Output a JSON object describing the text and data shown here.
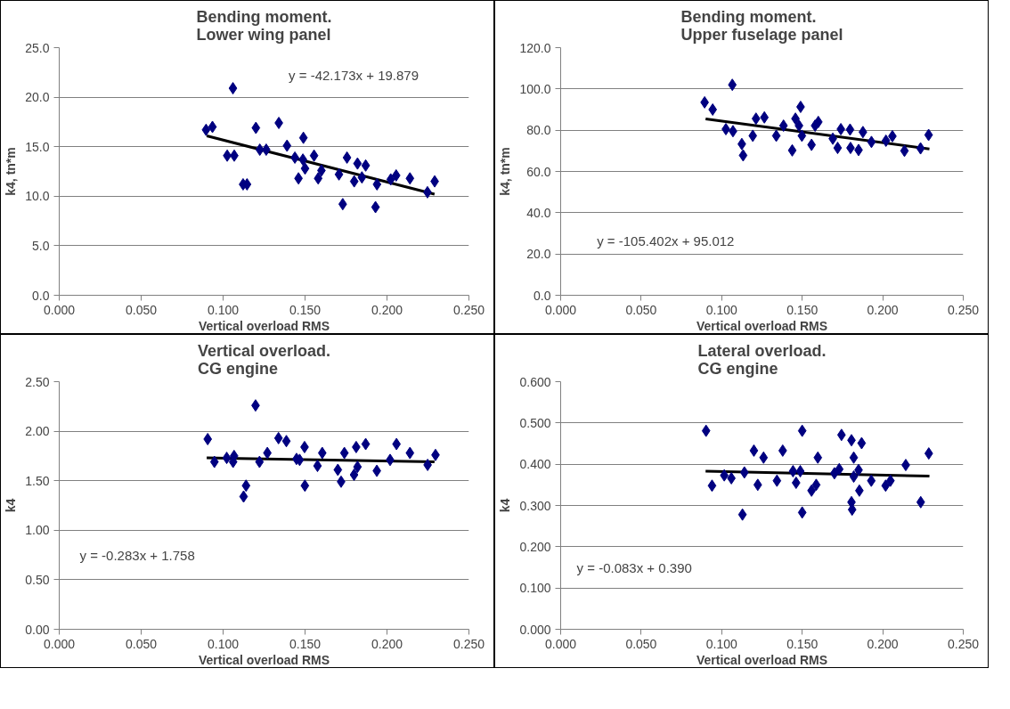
{
  "chart_data": [
    {
      "type": "scatter",
      "title": "Bending moment.\nLower wing panel",
      "xlabel": "Vertical overload RMS",
      "ylabel": "k4, tn*m",
      "xlim": [
        0,
        0.25
      ],
      "ylim": [
        0,
        25
      ],
      "xticks": [
        {
          "value": 0,
          "label": "0.000"
        },
        {
          "value": 0.05,
          "label": "0.050"
        },
        {
          "value": 0.1,
          "label": "0.100"
        },
        {
          "value": 0.15,
          "label": "0.150"
        },
        {
          "value": 0.2,
          "label": "0.200"
        },
        {
          "value": 0.25,
          "label": "0.250"
        }
      ],
      "yticks": [
        {
          "value": 0,
          "label": "0.0"
        },
        {
          "value": 5,
          "label": "5.0"
        },
        {
          "value": 10,
          "label": "10.0"
        },
        {
          "value": 15,
          "label": "15.0"
        },
        {
          "value": 20,
          "label": "20.0"
        },
        {
          "value": 25,
          "label": "25.0"
        }
      ],
      "grid": "y",
      "annotations": [
        "y = -42.173x + 19.879"
      ],
      "series": [
        {
          "type": "scatter",
          "marker": "diamond",
          "color": "#000080",
          "x": [
            0.0896,
            0.0935,
            0.106,
            0.1025,
            0.1068,
            0.1122,
            0.1146,
            0.12,
            0.1224,
            0.1263,
            0.134,
            0.139,
            0.1438,
            0.146,
            0.1487,
            0.149,
            0.15,
            0.1555,
            0.158,
            0.16,
            0.1707,
            0.173,
            0.1756,
            0.18,
            0.182,
            0.1847,
            0.187,
            0.193,
            0.1939,
            0.2023,
            0.2056,
            0.214,
            0.2247,
            0.2291
          ],
          "values": [
            16.7,
            17.0,
            20.9,
            14.1,
            14.1,
            11.2,
            11.2,
            16.9,
            14.7,
            14.7,
            17.4,
            15.1,
            13.9,
            11.8,
            13.7,
            15.9,
            12.8,
            14.1,
            11.8,
            12.6,
            12.2,
            9.2,
            13.9,
            11.5,
            13.3,
            11.9,
            13.1,
            8.9,
            11.2,
            11.7,
            12.1,
            11.8,
            10.4,
            11.5
          ]
        },
        {
          "type": "line",
          "color": "#000000",
          "x": [
            0.09,
            0.229
          ],
          "values": [
            16.1,
            10.2
          ]
        }
      ]
    },
    {
      "type": "scatter",
      "title": "Bending moment.\nUpper fuselage panel",
      "xlabel": "Vertical overload RMS",
      "ylabel": "k4, tn*m",
      "xlim": [
        0,
        0.25
      ],
      "ylim": [
        0,
        120
      ],
      "xticks": [
        {
          "value": 0,
          "label": "0.000"
        },
        {
          "value": 0.05,
          "label": "0.050"
        },
        {
          "value": 0.1,
          "label": "0.100"
        },
        {
          "value": 0.15,
          "label": "0.150"
        },
        {
          "value": 0.2,
          "label": "0.200"
        },
        {
          "value": 0.25,
          "label": "0.250"
        }
      ],
      "yticks": [
        {
          "value": 0,
          "label": "0.0"
        },
        {
          "value": 20,
          "label": "20.0"
        },
        {
          "value": 40,
          "label": "40.0"
        },
        {
          "value": 60,
          "label": "60.0"
        },
        {
          "value": 80,
          "label": "80.0"
        },
        {
          "value": 100,
          "label": "100.0"
        },
        {
          "value": 120,
          "label": "120.0"
        }
      ],
      "grid": "y",
      "annotations": [
        "y = -105.402x + 95.012"
      ],
      "series": [
        {
          "type": "scatter",
          "marker": "diamond",
          "color": "#000080",
          "x": [
            0.0894,
            0.0944,
            0.1026,
            0.107,
            0.1066,
            0.1125,
            0.1133,
            0.1193,
            0.1213,
            0.1265,
            0.1339,
            0.1384,
            0.1438,
            0.1458,
            0.148,
            0.149,
            0.1498,
            0.1558,
            0.158,
            0.16,
            0.169,
            0.172,
            0.174,
            0.1797,
            0.18,
            0.185,
            0.1877,
            0.193,
            0.202,
            0.206,
            0.2135,
            0.2235,
            0.2285
          ],
          "values": [
            93.5,
            90,
            80.5,
            79.5,
            102,
            73.3,
            67.8,
            77.3,
            85.6,
            86.2,
            77.3,
            82.2,
            70.2,
            85.6,
            82.2,
            91.3,
            77.3,
            72.9,
            82.2,
            84,
            75.9,
            71.4,
            80.5,
            80.3,
            71.4,
            70.4,
            79.1,
            74.3,
            74.9,
            77.1,
            70,
            71.2,
            77.7
          ]
        },
        {
          "type": "line",
          "color": "#000000",
          "x": [
            0.09,
            0.229
          ],
          "values": [
            85.5,
            70.9
          ]
        }
      ]
    },
    {
      "type": "scatter",
      "title": "Vertical overload.\nCG engine",
      "xlabel": "Vertical overload RMS",
      "ylabel": "k4",
      "xlim": [
        0,
        0.25
      ],
      "ylim": [
        0,
        2.5
      ],
      "xticks": [
        {
          "value": 0,
          "label": "0.000"
        },
        {
          "value": 0.05,
          "label": "0.050"
        },
        {
          "value": 0.1,
          "label": "0.100"
        },
        {
          "value": 0.15,
          "label": "0.150"
        },
        {
          "value": 0.2,
          "label": "0.200"
        },
        {
          "value": 0.25,
          "label": "0.250"
        }
      ],
      "yticks": [
        {
          "value": 0,
          "label": "0.00"
        },
        {
          "value": 0.5,
          "label": "0.50"
        },
        {
          "value": 1,
          "label": "1.00"
        },
        {
          "value": 1.5,
          "label": "1.50"
        },
        {
          "value": 2,
          "label": "2.00"
        },
        {
          "value": 2.5,
          "label": "2.50"
        }
      ],
      "grid": "y",
      "annotations": [
        "y = -0.283x + 1.758"
      ],
      "series": [
        {
          "type": "scatter",
          "marker": "diamond",
          "color": "#000080",
          "x": [
            0.0906,
            0.0947,
            0.1022,
            0.1067,
            0.1061,
            0.1198,
            0.114,
            0.1125,
            0.1222,
            0.127,
            0.1338,
            0.1386,
            0.1448,
            0.1497,
            0.1499,
            0.1467,
            0.1576,
            0.1605,
            0.17,
            0.172,
            0.174,
            0.1799,
            0.1812,
            0.182,
            0.187,
            0.1938,
            0.2019,
            0.2058,
            0.214,
            0.2248,
            0.2296
          ],
          "values": [
            1.92,
            1.69,
            1.73,
            1.75,
            1.69,
            2.26,
            1.45,
            1.34,
            1.69,
            1.78,
            1.93,
            1.9,
            1.72,
            1.84,
            1.45,
            1.71,
            1.65,
            1.78,
            1.61,
            1.49,
            1.78,
            1.56,
            1.84,
            1.64,
            1.87,
            1.6,
            1.71,
            1.87,
            1.78,
            1.66,
            1.76
          ]
        },
        {
          "type": "line",
          "color": "#000000",
          "x": [
            0.09,
            0.229
          ],
          "values": [
            1.73,
            1.69
          ]
        }
      ]
    },
    {
      "type": "scatter",
      "title": "Lateral overload.\nCG engine",
      "xlabel": "Vertical overload RMS",
      "ylabel": "k4",
      "xlim": [
        0,
        0.25
      ],
      "ylim": [
        0,
        0.6
      ],
      "xticks": [
        {
          "value": 0,
          "label": "0.000"
        },
        {
          "value": 0.05,
          "label": "0.050"
        },
        {
          "value": 0.1,
          "label": "0.100"
        },
        {
          "value": 0.15,
          "label": "0.150"
        },
        {
          "value": 0.2,
          "label": "0.200"
        },
        {
          "value": 0.25,
          "label": "0.250"
        }
      ],
      "yticks": [
        {
          "value": 0,
          "label": "0.000"
        },
        {
          "value": 0.1,
          "label": "0.100"
        },
        {
          "value": 0.2,
          "label": "0.200"
        },
        {
          "value": 0.3,
          "label": "0.300"
        },
        {
          "value": 0.4,
          "label": "0.400"
        },
        {
          "value": 0.5,
          "label": "0.500"
        },
        {
          "value": 0.6,
          "label": "0.600"
        }
      ],
      "grid": "y",
      "annotations": [
        "y = -0.083x + 0.390"
      ],
      "series": [
        {
          "type": "scatter",
          "marker": "diamond",
          "color": "#000080",
          "x": [
            0.0903,
            0.094,
            0.1016,
            0.106,
            0.1129,
            0.1141,
            0.12,
            0.1224,
            0.126,
            0.1343,
            0.1379,
            0.1443,
            0.1462,
            0.1488,
            0.15,
            0.15,
            0.1558,
            0.1587,
            0.1597,
            0.17,
            0.173,
            0.1744,
            0.1806,
            0.182,
            0.182,
            0.1806,
            0.181,
            0.185,
            0.1855,
            0.1869,
            0.1929,
            0.2018,
            0.2048,
            0.2143,
            0.2236,
            0.2286
          ],
          "values": [
            0.481,
            0.348,
            0.373,
            0.366,
            0.278,
            0.38,
            0.433,
            0.35,
            0.416,
            0.36,
            0.433,
            0.383,
            0.355,
            0.383,
            0.481,
            0.283,
            0.336,
            0.35,
            0.416,
            0.378,
            0.388,
            0.471,
            0.458,
            0.37,
            0.416,
            0.308,
            0.29,
            0.386,
            0.336,
            0.451,
            0.36,
            0.348,
            0.36,
            0.398,
            0.308,
            0.426
          ]
        },
        {
          "type": "line",
          "color": "#000000",
          "x": [
            0.09,
            0.229
          ],
          "values": [
            0.383,
            0.371
          ]
        }
      ]
    }
  ]
}
